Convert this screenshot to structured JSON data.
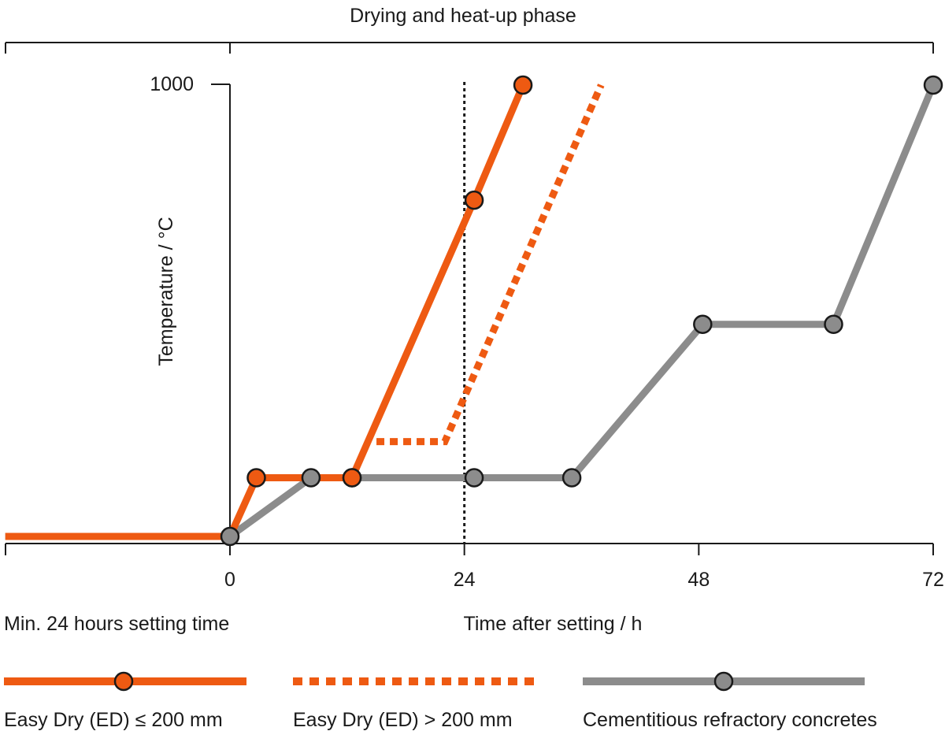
{
  "chart_data": {
    "type": "line",
    "phase_label": "Drying and heat-up phase",
    "setting_label": "Min. 24 hours setting time",
    "xlabel": "Time after setting / h",
    "ylabel": "Temperature / °C",
    "x_ticks": [
      "0",
      "24",
      "48",
      "72"
    ],
    "x_tick_values": [
      0,
      24,
      48,
      72
    ],
    "y_ticks": [
      "1000"
    ],
    "y_tick_values": [
      1000
    ],
    "xlim": [
      -23,
      72
    ],
    "ylim": [
      0,
      1000
    ],
    "reference_line_x": 24,
    "series": [
      {
        "name": "Easy Dry (ED) ≤ 200 mm",
        "color": "#ee5a12",
        "style": "solid",
        "markers": true,
        "x": [
          -23,
          0,
          2.7,
          12.5,
          25,
          30
        ],
        "y": [
          0,
          0,
          130,
          130,
          745,
          1000
        ],
        "marker_x": [
          2.7,
          12.5,
          25,
          30
        ],
        "marker_y": [
          130,
          130,
          745,
          1000
        ]
      },
      {
        "name": "Easy Dry (ED) > 200 mm",
        "color": "#ee5a12",
        "style": "dotted",
        "markers": false,
        "x": [
          15,
          22,
          38
        ],
        "y": [
          210,
          210,
          1000
        ],
        "marker_x": [],
        "marker_y": []
      },
      {
        "name": "Cementitious refractory concretes",
        "color": "#8c8c8c",
        "style": "solid",
        "markers": true,
        "x": [
          -23,
          0,
          8.3,
          12.5,
          25,
          35,
          48.4,
          61.8,
          72
        ],
        "y": [
          0,
          0,
          130,
          130,
          130,
          130,
          470,
          470,
          1000
        ],
        "marker_x": [
          0,
          8.3,
          12.5,
          25,
          35,
          48.4,
          61.8,
          72
        ],
        "marker_y": [
          0,
          130,
          130,
          130,
          130,
          470,
          470,
          1000
        ]
      }
    ]
  }
}
